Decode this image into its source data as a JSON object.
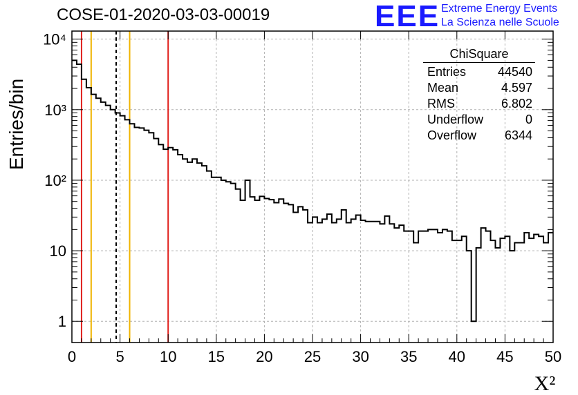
{
  "title": "COSE-01-2020-03-03-00019",
  "logo": {
    "mark": "EEE",
    "line1": "Extreme Energy Events",
    "line2": "La Scienza nelle Scuole",
    "color": "#1a1aff"
  },
  "stats_box": {
    "title": "ChiSquare",
    "rows": [
      {
        "label": "Entries",
        "value": "44540"
      },
      {
        "label": "Mean",
        "value": "4.597"
      },
      {
        "label": "RMS",
        "value": "6.802"
      },
      {
        "label": "Underflow",
        "value": "0"
      },
      {
        "label": "Overflow",
        "value": "6344"
      }
    ]
  },
  "chart_data": {
    "type": "histogram",
    "title": "COSE-01-2020-03-03-00019",
    "xlabel": "X²",
    "ylabel": "Entries/bin",
    "xlim": [
      0,
      50
    ],
    "ylim": [
      0.5,
      13000
    ],
    "yscale": "log",
    "grid": true,
    "bin_width": 0.5,
    "x_ticks": [
      "0",
      "5",
      "10",
      "15",
      "20",
      "25",
      "30",
      "35",
      "40",
      "45",
      "50"
    ],
    "y_ticks": [
      {
        "value": 1,
        "label": "1"
      },
      {
        "value": 10,
        "label": "10"
      },
      {
        "value": 100,
        "label": "10²"
      },
      {
        "value": 1000,
        "label": "10³"
      },
      {
        "value": 10000,
        "label": "10⁴"
      }
    ],
    "values": [
      5000,
      4400,
      2700,
      2050,
      1650,
      1450,
      1280,
      1150,
      1000,
      900,
      820,
      720,
      630,
      560,
      550,
      510,
      470,
      390,
      320,
      275,
      290,
      270,
      230,
      200,
      180,
      200,
      175,
      160,
      135,
      110,
      110,
      100,
      95,
      90,
      75,
      52,
      100,
      58,
      52,
      59,
      55,
      53,
      48,
      54,
      47,
      45,
      35,
      42,
      38,
      25,
      30,
      25,
      28,
      33,
      25,
      28,
      38,
      25,
      28,
      32,
      27,
      26,
      26,
      26,
      24,
      31,
      24,
      21,
      23,
      19,
      19,
      13,
      19,
      19,
      20,
      20,
      18,
      20,
      19,
      14,
      14,
      16,
      10,
      1,
      11,
      21,
      19,
      14,
      11,
      15,
      16,
      10,
      13,
      13,
      18,
      15,
      17,
      16,
      13,
      18
    ],
    "vertical_lines": [
      {
        "x": 1.0,
        "color": "#e0201c",
        "style": "solid"
      },
      {
        "x": 2.0,
        "color": "#f0b400",
        "style": "solid"
      },
      {
        "x": 4.597,
        "color": "#000000",
        "style": "dashed"
      },
      {
        "x": 6.0,
        "color": "#f0b400",
        "style": "solid"
      },
      {
        "x": 10.0,
        "color": "#e0201c",
        "style": "solid"
      }
    ]
  }
}
